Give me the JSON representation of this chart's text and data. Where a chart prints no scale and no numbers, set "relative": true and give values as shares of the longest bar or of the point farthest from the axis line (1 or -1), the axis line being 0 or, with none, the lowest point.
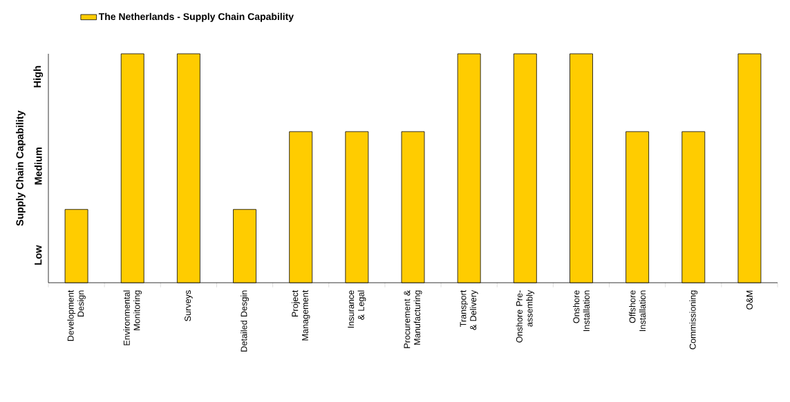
{
  "chart_data": {
    "type": "bar",
    "relative": true,
    "ylabel": "Supply Chain Capability",
    "categories": [
      "Development Design",
      "Environmental Monitoring",
      "Surveys",
      "Detailed Desgin",
      "Project Management",
      "Insurance & Legal",
      "Procurement & Manufacturing",
      "Transport & Delivery",
      "Onshore Pre-assembly",
      "Onshore Installation",
      "Offshore Installation",
      "Commissioning",
      "O&M"
    ],
    "series": [
      {
        "name": "The Netherlands - Supply Chain Capability",
        "color": "#ffcc00",
        "values": [
          0.32,
          1,
          1,
          0.32,
          0.66,
          0.66,
          0.66,
          1,
          1,
          1,
          0.66,
          0.66,
          1
        ]
      }
    ],
    "annotations": [
      "Low",
      "Medium",
      "High"
    ],
    "legend": "top left"
  }
}
